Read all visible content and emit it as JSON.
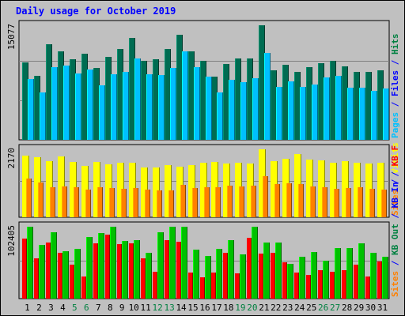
{
  "chart_data": {
    "type": "bar",
    "title": "Daily usage for October 2019",
    "x": [
      "1",
      "2",
      "3",
      "4",
      "5",
      "6",
      "7",
      "8",
      "9",
      "10",
      "11",
      "12",
      "13",
      "14",
      "15",
      "16",
      "17",
      "18",
      "19",
      "20",
      "21",
      "22",
      "23",
      "24",
      "25",
      "26",
      "27",
      "28",
      "29",
      "30",
      "31"
    ],
    "weekend_days": [
      "5",
      "6",
      "12",
      "13",
      "19",
      "20",
      "26",
      "27"
    ],
    "panels": [
      {
        "ymax_label": "15077",
        "ymax": 15077,
        "right_labels": [
          {
            "text": "Hits",
            "color": "#008040"
          },
          {
            "text": "/",
            "color": "#0000ff"
          },
          {
            "text": "Files",
            "color": "#0000ff"
          },
          {
            "text": "/",
            "color": "#0000ff"
          },
          {
            "text": "Pages",
            "color": "#00c0ff"
          }
        ],
        "series": [
          {
            "name": "Hits",
            "color": "#006c52",
            "values": [
              10220,
              8410,
              12620,
              11670,
              10560,
              11370,
              9460,
              10900,
              11920,
              13370,
              10410,
              10580,
              11910,
              13840,
              11690,
              10380,
              8370,
              9980,
              10730,
              10740,
              15077,
              9190,
              9880,
              8940,
              9550,
              10110,
              10430,
              9710,
              8990,
              8940,
              9100
            ]
          },
          {
            "name": "Files",
            "color": "#00c0ff",
            "values": [
              8000,
              6230,
              9560,
              9740,
              8770,
              9290,
              7170,
              8580,
              8900,
              10720,
              8640,
              8490,
              9480,
              11610,
              9580,
              8340,
              6290,
              7890,
              7550,
              8080,
              11450,
              6960,
              7700,
              6960,
              7230,
              8250,
              8380,
              6840,
              6870,
              6400,
              6740
            ]
          },
          {
            "name": "Pages",
            "color": "#00d8ff",
            "values": [
              1800,
              1500,
              2200,
              2000,
              1700,
              1900,
              1600,
              1800,
              2000,
              2200,
              1800,
              1700,
              1900,
              2100,
              2000,
              1800,
              1600,
              1700,
              1700,
              1800,
              2300,
              1500,
              1700,
              1500,
              1600,
              1700,
              1800,
              1600,
              1500,
              1500,
              1600
            ]
          }
        ]
      },
      {
        "ymax_label": "2170",
        "ymax": 2170,
        "right_labels": [
          {
            "text": "Visits",
            "color": "#ffff00"
          },
          {
            "text": "/",
            "color": "#0000ff"
          },
          {
            "text": "Sites",
            "color": "#ff8000"
          }
        ],
        "series": [
          {
            "name": "Visits",
            "color": "#ffff00",
            "values": [
              1970,
              1920,
              1800,
              1950,
              1760,
              1640,
              1770,
              1680,
              1750,
              1750,
              1600,
              1580,
              1660,
              1620,
              1660,
              1730,
              1770,
              1720,
              1730,
              1710,
              2170,
              1790,
              1870,
              2020,
              1850,
              1810,
              1740,
              1780,
              1740,
              1720,
              1750
            ]
          },
          {
            "name": "Sites",
            "color": "#ff8000",
            "values": [
              1240,
              1110,
              960,
              980,
              960,
              890,
              960,
              930,
              900,
              940,
              880,
              850,
              870,
              1030,
              930,
              950,
              960,
              1000,
              990,
              1020,
              1300,
              1050,
              1080,
              1050,
              990,
              950,
              910,
              940,
              950,
              910,
              890
            ]
          }
        ]
      },
      {
        "ymax_label": "102405",
        "ymax": 102405,
        "right_labels": [
          {
            "text": "KB F",
            "color": "#ff0000"
          },
          {
            "text": "/",
            "color": "#0000ff"
          },
          {
            "text": "KB In",
            "color": "#0000ff"
          },
          {
            "text": "/",
            "color": "#0000ff"
          },
          {
            "text": "KB Out",
            "color": "#008040"
          },
          {
            "text": "/",
            "color": "#0000ff"
          },
          {
            "text": "Sites",
            "color": "#ff8000"
          }
        ],
        "series": [
          {
            "name": "KB F",
            "color": "#ff0000",
            "values": [
              86000,
              57000,
              80000,
              65000,
              48000,
              32000,
              79000,
              91000,
              78000,
              79000,
              57000,
              38000,
              83000,
              81000,
              37000,
              30000,
              37000,
              65000,
              36000,
              87000,
              64000,
              65000,
              52000,
              37000,
              34000,
              40000,
              38000,
              40000,
              48000,
              31000,
              53000
            ]
          },
          {
            "name": "KB In",
            "color": "#0000ff",
            "values": [
              0,
              0,
              0,
              0,
              0,
              0,
              0,
              0,
              0,
              0,
              0,
              0,
              0,
              0,
              0,
              0,
              0,
              0,
              0,
              0,
              0,
              0,
              0,
              0,
              0,
              0,
              0,
              0,
              0,
              0,
              0
            ]
          },
          {
            "name": "KB Out",
            "color": "#00c000",
            "values": [
              102405,
              76000,
              94000,
              67000,
              71000,
              88000,
              93000,
              102405,
              82000,
              83000,
              65000,
              94000,
              102405,
              102405,
              70000,
              61000,
              71000,
              83000,
              63000,
              102405,
              80000,
              80000,
              49000,
              60000,
              66000,
              54000,
              72000,
              72000,
              79000,
              65000,
              60000
            ]
          }
        ]
      }
    ]
  }
}
